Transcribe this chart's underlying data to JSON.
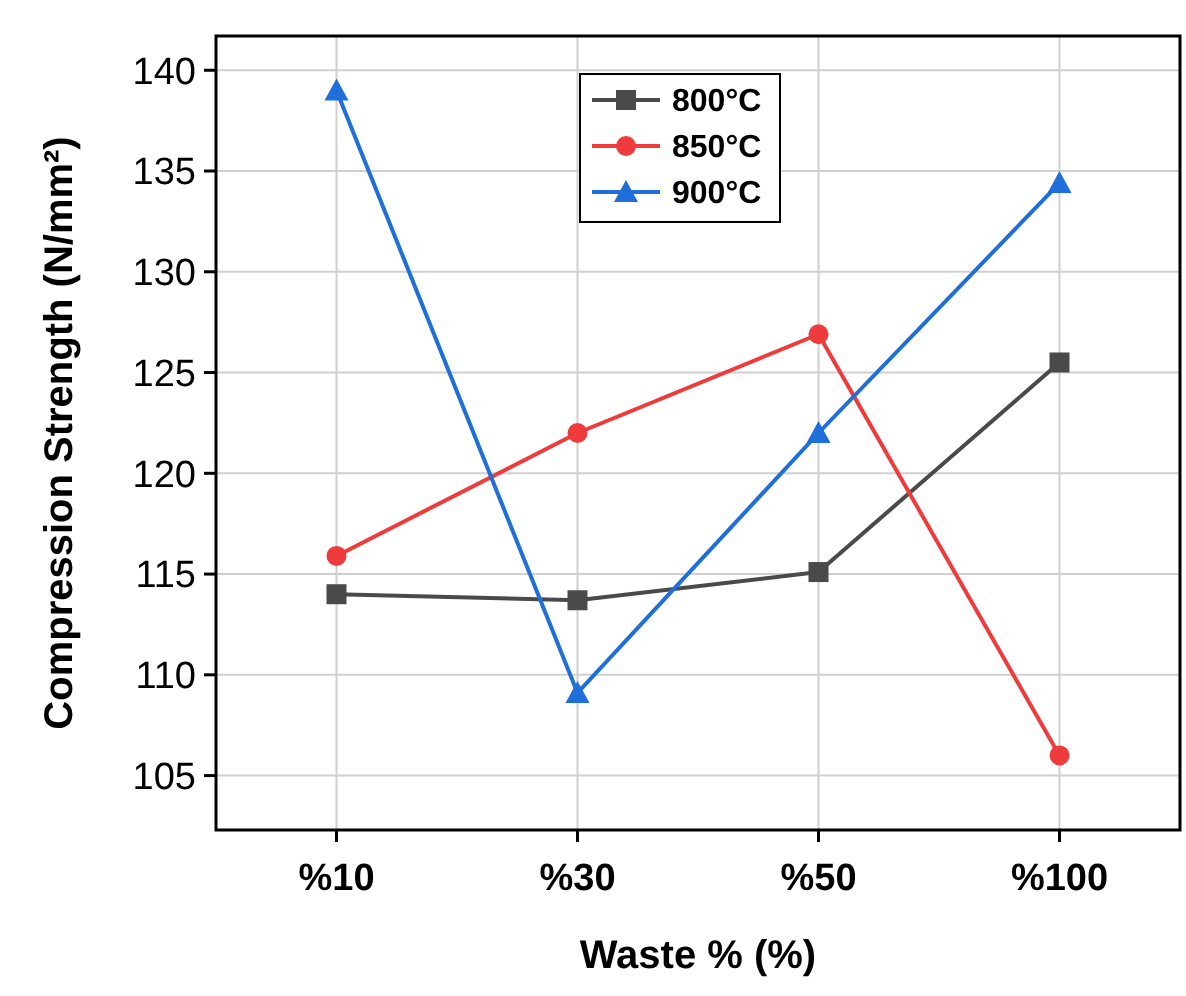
{
  "chart_data": {
    "type": "line",
    "xlabel": "Waste % (%)",
    "ylabel": "Compression Strength (N/mm²)",
    "categories": [
      "%10",
      "%30",
      "%50",
      "%100"
    ],
    "series": [
      {
        "name": "800°C",
        "color": "#4a4a4a",
        "marker": "square",
        "values": [
          114.0,
          113.7,
          115.1,
          125.5
        ]
      },
      {
        "name": "850°C",
        "color": "#ef3b3b",
        "marker": "circle",
        "values": [
          115.9,
          122.0,
          126.9,
          106.0
        ]
      },
      {
        "name": "900°C",
        "color": "#1e6fd9",
        "marker": "triangle",
        "values": [
          139.0,
          109.1,
          122.0,
          134.4
        ]
      }
    ],
    "ylim": [
      102.3,
      141.7
    ],
    "yticks": [
      105,
      110,
      115,
      120,
      125,
      130,
      135,
      140
    ],
    "grid": true,
    "legend": "top",
    "line_style": "solid"
  }
}
